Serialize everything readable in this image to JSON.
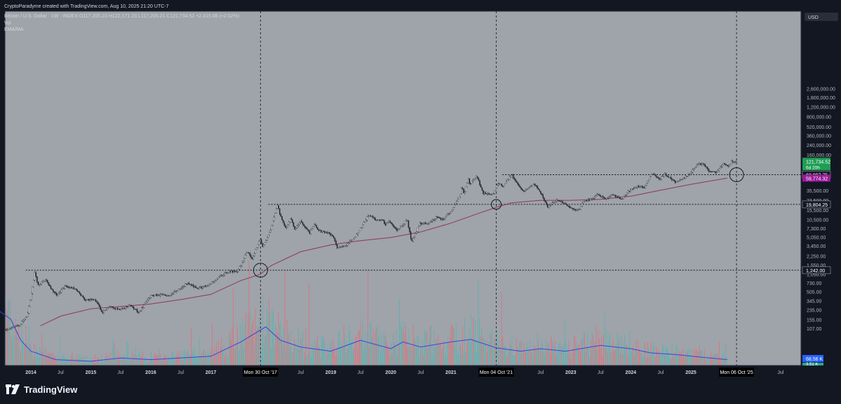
{
  "header": {
    "attribution": "CryptoParadyme created with TradingView.com, Aug 10, 2025 21:20 UTC-7",
    "symbol_line": "Bitcoin / U.S. Dollar · 1W · INDEX  O117,205.23  H122,171.23  L117,205.21  C121,734.52  +2,415.08 (+2.02%)",
    "indicator_vol": "Vol",
    "indicator_ema": "EMA/MA"
  },
  "brand": {
    "name": "TradingView"
  },
  "colors": {
    "background": "#131722",
    "chart_bg": "#9fa3aa",
    "axis_bg": "#131722",
    "ma_line": "#8b3a50",
    "vol_ma_line": "#3446e0",
    "vol_up": "#5ab3b0",
    "vol_down": "#d9747d",
    "price_badge": "#1f9e55",
    "ma_badge": "#9c1a9c",
    "level_badge": "#131722",
    "vol_badge": "#2962ff"
  },
  "chart_data": {
    "type": "candlestick",
    "title": "Bitcoin / U.S. Dollar · 1W · INDEX",
    "ylabel": "USD",
    "y_scale": "log",
    "xlim": [
      "2013-06-01",
      "2026-09-01"
    ],
    "ylim": [
      1,
      3200000
    ],
    "y_ticks": [
      "2,600,000.00",
      "1,800,000.00",
      "1,200,000.00",
      "800,000.00",
      "520,000.00",
      "360,000.00",
      "240,000.00",
      "160,000.00",
      "70,000.00",
      "35,500.00",
      "23,500.00",
      "15,500.00",
      "10,500.00",
      "7,300.00",
      "5,050.00",
      "3,450.00",
      "2,250.00",
      "1,550.00",
      "1,050.00",
      "730.00",
      "505.00",
      "345.00",
      "235.00",
      "155.00",
      "107.00"
    ],
    "x_ticks": [
      {
        "label": "2014",
        "date": "2014-01-01"
      },
      {
        "label": "Jul",
        "date": "2014-07-01"
      },
      {
        "label": "2015",
        "date": "2015-01-01"
      },
      {
        "label": "Jul",
        "date": "2015-07-01"
      },
      {
        "label": "2016",
        "date": "2016-01-01"
      },
      {
        "label": "Jul",
        "date": "2016-07-01"
      },
      {
        "label": "2017",
        "date": "2017-01-01"
      },
      {
        "label": "Jul",
        "date": "2018-07-01"
      },
      {
        "label": "2019",
        "date": "2019-01-01"
      },
      {
        "label": "Jul",
        "date": "2019-07-01"
      },
      {
        "label": "2020",
        "date": "2020-01-01"
      },
      {
        "label": "Jul",
        "date": "2020-07-01"
      },
      {
        "label": "2021",
        "date": "2021-01-01"
      },
      {
        "label": "Jul",
        "date": "2022-07-01"
      },
      {
        "label": "2023",
        "date": "2023-01-01"
      },
      {
        "label": "Jul",
        "date": "2023-07-01"
      },
      {
        "label": "2024",
        "date": "2024-01-01"
      },
      {
        "label": "Jul",
        "date": "2024-07-01"
      },
      {
        "label": "2025",
        "date": "2025-01-01"
      },
      {
        "label": "Jul",
        "date": "2026-07-01"
      }
    ],
    "date_labels": [
      {
        "label": "Mon 30 Oct '17",
        "date": "2017-10-30"
      },
      {
        "label": "Mon 04 Oct '21",
        "date": "2021-10-04"
      },
      {
        "label": "Mon 06 Oct '25",
        "date": "2025-10-06"
      }
    ],
    "price_path": [
      [
        "2013-06-01",
        100
      ],
      [
        "2013-09-01",
        125
      ],
      [
        "2013-10-15",
        180
      ],
      [
        "2013-11-15",
        600
      ],
      [
        "2013-12-01",
        1150
      ],
      [
        "2013-12-20",
        650
      ],
      [
        "2014-02-01",
        850
      ],
      [
        "2014-03-15",
        550
      ],
      [
        "2014-04-15",
        430
      ],
      [
        "2014-06-01",
        640
      ],
      [
        "2014-08-01",
        570
      ],
      [
        "2014-10-01",
        360
      ],
      [
        "2014-12-01",
        360
      ],
      [
        "2015-01-15",
        210
      ],
      [
        "2015-03-01",
        270
      ],
      [
        "2015-05-01",
        235
      ],
      [
        "2015-07-01",
        285
      ],
      [
        "2015-08-25",
        210
      ],
      [
        "2015-11-05",
        420
      ],
      [
        "2015-12-15",
        440
      ],
      [
        "2016-03-01",
        420
      ],
      [
        "2016-06-15",
        720
      ],
      [
        "2016-08-15",
        575
      ],
      [
        "2016-10-15",
        640
      ],
      [
        "2016-12-31",
        960
      ],
      [
        "2017-03-01",
        1200
      ],
      [
        "2017-04-15",
        1150
      ],
      [
        "2017-06-15",
        2700
      ],
      [
        "2017-07-15",
        1950
      ],
      [
        "2017-09-01",
        4700
      ],
      [
        "2017-09-15",
        3200
      ],
      [
        "2017-10-30",
        6100
      ],
      [
        "2017-12-17",
        19804
      ],
      [
        "2017-12-30",
        13000
      ],
      [
        "2018-02-06",
        6900
      ],
      [
        "2018-03-05",
        11500
      ],
      [
        "2018-04-01",
        6800
      ],
      [
        "2018-05-05",
        9800
      ],
      [
        "2018-06-28",
        5900
      ],
      [
        "2018-07-25",
        8400
      ],
      [
        "2018-09-01",
        6500
      ],
      [
        "2018-11-15",
        5500
      ],
      [
        "2018-12-15",
        3200
      ],
      [
        "2019-02-01",
        3450
      ],
      [
        "2019-04-02",
        5000
      ],
      [
        "2019-06-26",
        13000
      ],
      [
        "2019-08-01",
        10500
      ],
      [
        "2019-09-20",
        10000
      ],
      [
        "2019-10-01",
        8200
      ],
      [
        "2019-10-26",
        9500
      ],
      [
        "2019-12-17",
        6600
      ],
      [
        "2020-02-13",
        10500
      ],
      [
        "2020-03-12",
        4100
      ],
      [
        "2020-05-01",
        8800
      ],
      [
        "2020-07-01",
        9200
      ],
      [
        "2020-08-15",
        12000
      ],
      [
        "2020-09-15",
        10500
      ],
      [
        "2020-11-01",
        14000
      ],
      [
        "2020-12-31",
        29000
      ],
      [
        "2021-01-10",
        41000
      ],
      [
        "2021-01-25",
        31000
      ],
      [
        "2021-02-21",
        58000
      ],
      [
        "2021-03-01",
        46000
      ],
      [
        "2021-04-14",
        64800
      ],
      [
        "2021-05-19",
        32000
      ],
      [
        "2021-07-20",
        29800
      ],
      [
        "2021-08-20",
        49000
      ],
      [
        "2021-09-20",
        41000
      ],
      [
        "2021-10-04",
        49000
      ],
      [
        "2021-11-10",
        68997.75
      ],
      [
        "2021-12-15",
        47000
      ],
      [
        "2022-01-24",
        34000
      ],
      [
        "2022-03-28",
        47500
      ],
      [
        "2022-05-15",
        29000
      ],
      [
        "2022-06-18",
        17600
      ],
      [
        "2022-08-15",
        24000
      ],
      [
        "2022-10-15",
        19200
      ],
      [
        "2022-11-21",
        15500
      ],
      [
        "2022-12-31",
        16500
      ],
      [
        "2023-01-20",
        23000
      ],
      [
        "2023-03-15",
        24500
      ],
      [
        "2023-04-15",
        30000
      ],
      [
        "2023-06-15",
        25000
      ],
      [
        "2023-07-15",
        30000
      ],
      [
        "2023-09-11",
        25000
      ],
      [
        "2023-10-25",
        34500
      ],
      [
        "2023-12-15",
        43000
      ],
      [
        "2024-01-23",
        39000
      ],
      [
        "2024-03-14",
        73000
      ],
      [
        "2024-05-01",
        57000
      ],
      [
        "2024-06-01",
        71000
      ],
      [
        "2024-08-05",
        50000
      ],
      [
        "2024-09-15",
        58000
      ],
      [
        "2024-10-31",
        72000
      ],
      [
        "2024-12-17",
        108000
      ],
      [
        "2025-01-20",
        106000
      ],
      [
        "2025-02-28",
        79000
      ],
      [
        "2025-04-07",
        76000
      ],
      [
        "2025-05-22",
        111000
      ],
      [
        "2025-06-22",
        100000
      ],
      [
        "2025-07-14",
        122000
      ],
      [
        "2025-08-10",
        121734.52
      ]
    ],
    "ma_path": [
      [
        "2014-03-01",
        120
      ],
      [
        "2014-07-01",
        180
      ],
      [
        "2015-01-01",
        245
      ],
      [
        "2015-07-01",
        270
      ],
      [
        "2016-01-01",
        300
      ],
      [
        "2016-07-01",
        360
      ],
      [
        "2017-01-01",
        450
      ],
      [
        "2017-07-01",
        800
      ],
      [
        "2017-10-30",
        1050
      ],
      [
        "2018-01-01",
        1500
      ],
      [
        "2018-07-01",
        2700
      ],
      [
        "2019-01-01",
        3600
      ],
      [
        "2019-07-01",
        4300
      ],
      [
        "2020-01-01",
        4900
      ],
      [
        "2020-07-01",
        6200
      ],
      [
        "2021-01-01",
        9000
      ],
      [
        "2021-07-01",
        14000
      ],
      [
        "2021-10-04",
        17500
      ],
      [
        "2022-01-01",
        21000
      ],
      [
        "2022-07-01",
        23500
      ],
      [
        "2023-01-01",
        23500
      ],
      [
        "2023-07-01",
        24500
      ],
      [
        "2024-01-01",
        28000
      ],
      [
        "2024-07-01",
        36000
      ],
      [
        "2025-01-01",
        46000
      ],
      [
        "2025-08-10",
        59774.32
      ]
    ],
    "volume_ma_path": [
      [
        "2013-06-01",
        0.68
      ],
      [
        "2013-09-01",
        0.55
      ],
      [
        "2013-11-01",
        0.3
      ],
      [
        "2014-01-01",
        0.17
      ],
      [
        "2014-06-01",
        0.07
      ],
      [
        "2015-01-01",
        0.05
      ],
      [
        "2015-07-01",
        0.09
      ],
      [
        "2016-01-01",
        0.07
      ],
      [
        "2016-07-01",
        0.09
      ],
      [
        "2017-01-01",
        0.11
      ],
      [
        "2017-07-01",
        0.28
      ],
      [
        "2017-12-01",
        0.46
      ],
      [
        "2018-03-01",
        0.3
      ],
      [
        "2018-07-01",
        0.22
      ],
      [
        "2019-01-01",
        0.17
      ],
      [
        "2019-07-01",
        0.3
      ],
      [
        "2020-01-01",
        0.2
      ],
      [
        "2020-03-15",
        0.28
      ],
      [
        "2020-07-01",
        0.22
      ],
      [
        "2021-01-01",
        0.28
      ],
      [
        "2021-05-01",
        0.31
      ],
      [
        "2021-10-04",
        0.21
      ],
      [
        "2022-03-01",
        0.17
      ],
      [
        "2022-07-01",
        0.2
      ],
      [
        "2022-12-01",
        0.17
      ],
      [
        "2023-07-01",
        0.24
      ],
      [
        "2024-01-01",
        0.2
      ],
      [
        "2024-05-01",
        0.15
      ],
      [
        "2024-10-01",
        0.13
      ],
      [
        "2025-03-01",
        0.1
      ],
      [
        "2025-08-10",
        0.07
      ]
    ],
    "horizontal_levels": [
      {
        "value": 1242.0,
        "label": "1,242.00",
        "from": "2013-12-01"
      },
      {
        "value": 19804.25,
        "label": "19,804.25",
        "from": "2017-12-17"
      },
      {
        "value": 68997.75,
        "label": "68,997.75",
        "from": "2021-11-10"
      }
    ],
    "vertical_markers": [
      "2017-10-30",
      "2021-10-04",
      "2025-10-06"
    ],
    "circle_markers": [
      {
        "date": "2017-10-30",
        "value": 1242.0
      },
      {
        "date": "2021-10-04",
        "value": 19804.25
      },
      {
        "date": "2025-10-06",
        "value": 68997.75
      }
    ],
    "badges": [
      {
        "label": "121,734.52",
        "sub": "6d 20h",
        "value": 121734.52,
        "kind": "price"
      },
      {
        "label": "68,997.75",
        "value": 68997.75,
        "kind": "level"
      },
      {
        "label": "59,774.32",
        "value": 59774.32,
        "kind": "ma"
      },
      {
        "label": "19,804.25",
        "value": 19804.25,
        "kind": "level"
      },
      {
        "label": "1,242.00",
        "value": 1242.0,
        "kind": "level"
      }
    ],
    "volume_badge": {
      "label": "68.56 K",
      "value": 68560
    },
    "volume_badge_partial": "3.51 K",
    "currency_button": "USD"
  }
}
